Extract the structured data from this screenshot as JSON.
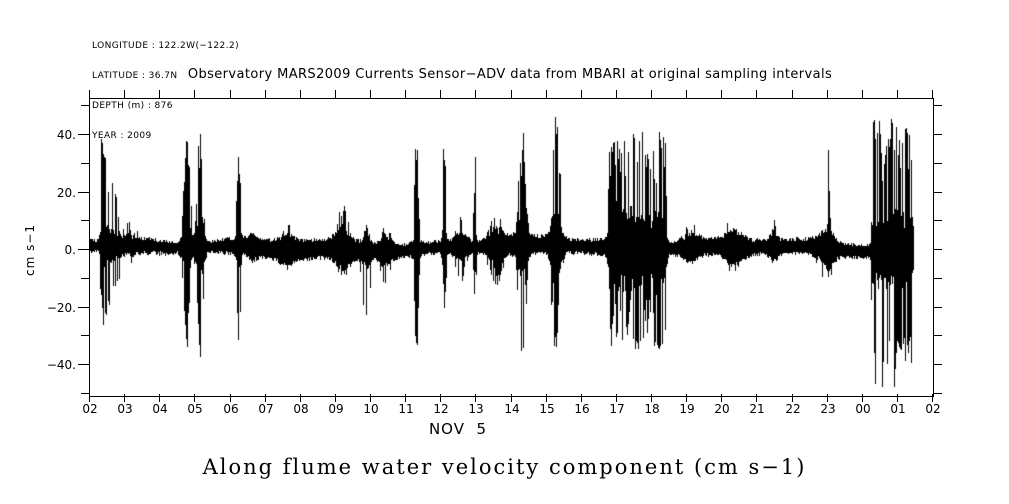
{
  "meta": {
    "lines": [
      "LONGITUDE : 122.2W(−122.2)",
      "LATITUDE : 36.7N",
      "DEPTH (m) : 876",
      "YEAR : 2009"
    ]
  },
  "caption": "Along flume water velocity component (cm s−1)",
  "colors": {
    "foreground": "#000000",
    "background": "#ffffff"
  },
  "chart_data": {
    "type": "line",
    "title": "Observatory MARS2009 Currents Sensor−ADV data from MBARI at original sampling intervals",
    "ylabel": "cm s−1",
    "xlabel": "NOV  5",
    "ylim": [
      -52.5,
      52.5
    ],
    "x_start_hour": 2,
    "x_end_hour": 26,
    "data_end_hour": 25.45,
    "x_hour_labels": [
      "02",
      "03",
      "04",
      "05",
      "06",
      "07",
      "08",
      "09",
      "10",
      "11",
      "12",
      "13",
      "14",
      "15",
      "16",
      "17",
      "18",
      "19",
      "20",
      "21",
      "22",
      "23",
      "00",
      "01",
      "02"
    ],
    "y_tick_values": [
      50,
      40,
      30,
      20,
      10,
      0,
      -10,
      -20,
      -30,
      -40,
      -50
    ],
    "y_tick_labels": [
      {
        "value": 40,
        "text": "40."
      },
      {
        "value": 20,
        "text": "20."
      },
      {
        "value": 0,
        "text": "0."
      },
      {
        "value": -20,
        "text": "−20."
      },
      {
        "value": -40,
        "text": "−40."
      }
    ],
    "baseline_mean": 0.8,
    "base_band": 3.2,
    "seed": 20091105,
    "events": [
      {
        "t": 2.32,
        "shape": "decay",
        "w": 0.5,
        "up": 41,
        "dn": 32,
        "body": 8,
        "hair": 0.85
      },
      {
        "t": 4.75,
        "shape": "gauss",
        "w": 0.13,
        "up": 38,
        "dn": 40,
        "body": 12,
        "hair": 0.95
      },
      {
        "t": 5.12,
        "shape": "gauss",
        "w": 0.12,
        "up": 42,
        "dn": 40,
        "body": 12,
        "hair": 0.95
      },
      {
        "t": 6.22,
        "shape": "gauss",
        "w": 0.07,
        "up": 40,
        "dn": 38,
        "body": 9,
        "hair": 1
      },
      {
        "t": 6.6,
        "shape": "gauss",
        "w": 0.15,
        "up": 6,
        "dn": 5,
        "body": 2,
        "hair": 0.4
      },
      {
        "t": 7.6,
        "shape": "gauss",
        "w": 0.25,
        "up": 10,
        "dn": 8,
        "body": 3,
        "hair": 0.5
      },
      {
        "t": 9.2,
        "shape": "gauss",
        "w": 0.3,
        "up": 16,
        "dn": 10,
        "body": 5,
        "hair": 0.6
      },
      {
        "t": 9.85,
        "shape": "gauss",
        "w": 0.15,
        "up": 9,
        "dn": 27,
        "body": 4,
        "hair": 0.8
      },
      {
        "t": 10.4,
        "shape": "gauss",
        "w": 0.25,
        "up": 8,
        "dn": 13,
        "body": 3,
        "hair": 0.5
      },
      {
        "t": 11.28,
        "shape": "gauss",
        "w": 0.08,
        "up": 41,
        "dn": 39,
        "body": 8,
        "hair": 1
      },
      {
        "t": 12.08,
        "shape": "gauss",
        "w": 0.07,
        "up": 42,
        "dn": 21,
        "body": 7,
        "hair": 1
      },
      {
        "t": 12.55,
        "shape": "gauss",
        "w": 0.22,
        "up": 11,
        "dn": 12,
        "body": 4,
        "hair": 0.5
      },
      {
        "t": 12.95,
        "shape": "gauss",
        "w": 0.05,
        "up": 34,
        "dn": 19,
        "body": 5,
        "hair": 1
      },
      {
        "t": 13.55,
        "shape": "gauss",
        "w": 0.28,
        "up": 13,
        "dn": 14,
        "body": 4,
        "hair": 0.5
      },
      {
        "t": 14.3,
        "shape": "gauss",
        "w": 0.15,
        "up": 41,
        "dn": 39,
        "body": 10,
        "hair": 0.9
      },
      {
        "t": 15.25,
        "shape": "gauss",
        "w": 0.17,
        "up": 47,
        "dn": 38,
        "body": 12,
        "hair": 0.9
      },
      {
        "t": 17.35,
        "shape": "flat",
        "w": 0.55,
        "up": 40,
        "dn": 36,
        "body": 13,
        "hair": 0.7
      },
      {
        "t": 18.2,
        "shape": "flat",
        "w": 0.15,
        "up": 40,
        "dn": 36,
        "body": 11,
        "hair": 0.7
      },
      {
        "t": 19.1,
        "shape": "gauss",
        "w": 0.3,
        "up": 9,
        "dn": 7,
        "body": 3.5,
        "hair": 0.4
      },
      {
        "t": 20.3,
        "shape": "gauss",
        "w": 0.3,
        "up": 12,
        "dn": 9,
        "body": 4,
        "hair": 0.4
      },
      {
        "t": 21.45,
        "shape": "gauss",
        "w": 0.15,
        "up": 11,
        "dn": 7,
        "body": 3,
        "hair": 0.4
      },
      {
        "t": 22.95,
        "shape": "gauss",
        "w": 0.3,
        "up": 10,
        "dn": 12,
        "body": 4.5,
        "hair": 0.4
      },
      {
        "t": 23.02,
        "shape": "gauss",
        "w": 0.05,
        "up": 39,
        "dn": 20,
        "body": 4,
        "hair": 1
      },
      {
        "t": 24.65,
        "shape": "flat",
        "w": 0.35,
        "up": 46,
        "dn": 48,
        "body": 11,
        "hair": 0.6
      },
      {
        "t": 25.2,
        "shape": "flat",
        "w": 0.18,
        "up": 45,
        "dn": 40,
        "body": 11,
        "hair": 0.6
      }
    ]
  }
}
